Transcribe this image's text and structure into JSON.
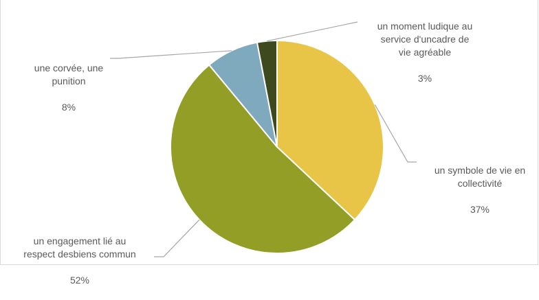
{
  "chart_data": {
    "type": "pie",
    "title": "",
    "start_angle_deg": 0,
    "direction": "clockwise",
    "slices": [
      {
        "label": "un symbole de vie en collectivité",
        "value": 37,
        "value_label": "37%",
        "color": "#E8C547"
      },
      {
        "label": "un engagement lié au respect desbiens commun",
        "value": 52,
        "value_label": "52%",
        "color": "#929E25"
      },
      {
        "label": "une corvée, une punition",
        "value": 8,
        "value_label": "8%",
        "color": "#7FA9BC"
      },
      {
        "label": "un moment ludique au service d'uncadre de vie agréable",
        "value": 3,
        "value_label": "3%",
        "color": "#3E4A1E"
      }
    ],
    "label_lines": [
      "un symbole de vie en\ncollectivité",
      "un engagement lié au\nrespect desbiens commun",
      "une corvée, une\npunition",
      "un moment ludique au\nservice d'uncadre de\nvie agréable"
    ],
    "leader_line_color": "#a6a6a6",
    "label_color": "#595959"
  }
}
